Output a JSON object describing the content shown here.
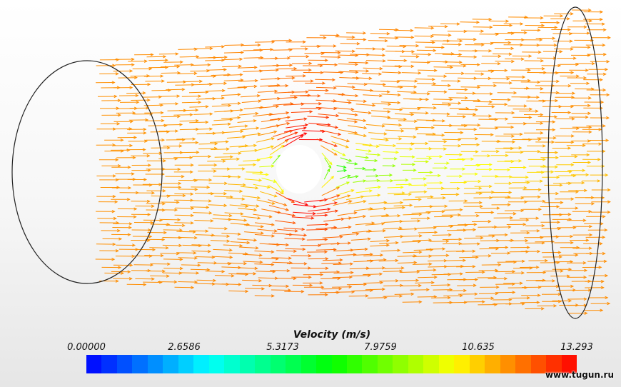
{
  "legend": {
    "title": "Velocity (m/s)",
    "ticks": [
      "0.00000",
      "2.6586",
      "5.3173",
      "7.9759",
      "10.635",
      "13.293"
    ],
    "min": 0.0,
    "max": 13.293,
    "bands": 32,
    "colors": [
      "#0000ff",
      "#00ffff",
      "#00ff00",
      "#ffff00",
      "#ff0000"
    ]
  },
  "watermark": "www.tugun.ru",
  "flow": {
    "freestream_speed": 10.0,
    "max_speed": 13.293,
    "direction": "left-to-right",
    "obstacle": "circular cylinder",
    "wake": "low-velocity region downstream of cylinder"
  }
}
